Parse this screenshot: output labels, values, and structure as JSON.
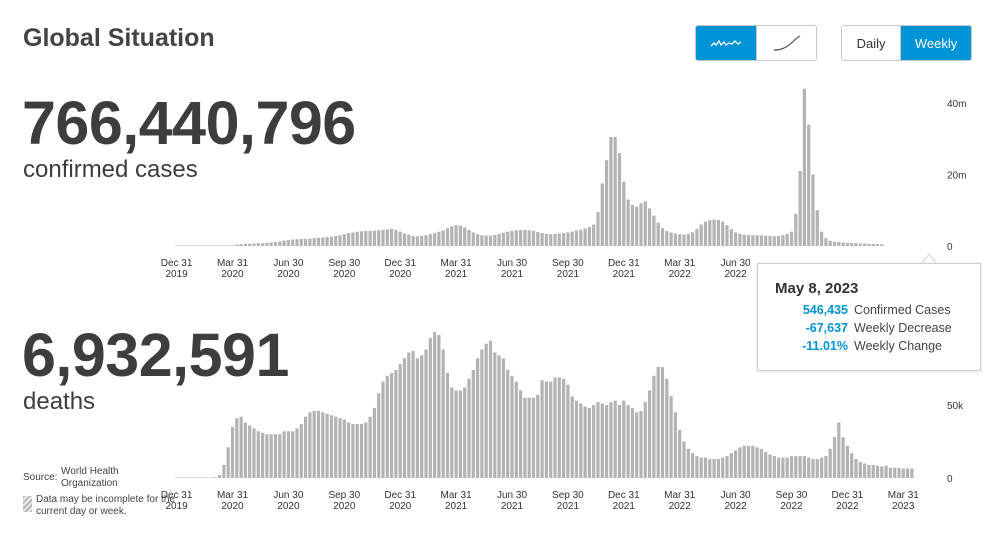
{
  "header": {
    "title": "Global Situation"
  },
  "view_toggle": {
    "icons": [
      "sparkline-icon",
      "cumulative-curve-icon"
    ]
  },
  "frequency": {
    "daily_label": "Daily",
    "weekly_label": "Weekly",
    "selected": "Weekly"
  },
  "colors": {
    "accent": "#0093d5",
    "bars": "#b3b3b3",
    "text": "#3d3d3d"
  },
  "cases": {
    "value": "766,440,796",
    "label": "confirmed cases"
  },
  "deaths": {
    "value": "6,932,591",
    "label": "deaths"
  },
  "tooltip": {
    "date": "May 8, 2023",
    "rows": [
      {
        "value": "546,435",
        "label": "Confirmed Cases"
      },
      {
        "value": "-67,637",
        "label": "Weekly Decrease"
      },
      {
        "value": "-11.01%",
        "label": "Weekly Change"
      }
    ]
  },
  "source": {
    "key": "Source:",
    "value": "World Health Organization"
  },
  "note": "Data may be incomplete for the current day or week.",
  "chart_data": [
    {
      "type": "bar",
      "title": "",
      "series": [
        {
          "name": "Confirmed Cases",
          "values": [
            0,
            0,
            0,
            0,
            0,
            0,
            0,
            0,
            0,
            0,
            0,
            0,
            0.1,
            0.2,
            0.4,
            0.5,
            0.6,
            0.6,
            0.7,
            0.8,
            0.8,
            0.9,
            1.0,
            1.1,
            1.3,
            1.5,
            1.7,
            1.8,
            1.9,
            2.0,
            2.0,
            2.1,
            2.2,
            2.3,
            2.4,
            2.5,
            2.6,
            2.8,
            3.0,
            3.3,
            3.6,
            3.8,
            4.0,
            4.1,
            4.2,
            4.2,
            4.3,
            4.4,
            4.5,
            4.6,
            4.8,
            4.5,
            4.0,
            3.5,
            3.2,
            2.8,
            2.7,
            2.8,
            3.0,
            3.3,
            3.6,
            4.0,
            4.4,
            5.0,
            5.5,
            5.8,
            5.7,
            5.2,
            4.5,
            3.8,
            3.3,
            3.0,
            2.9,
            2.9,
            3.1,
            3.4,
            3.7,
            4.0,
            4.2,
            4.4,
            4.5,
            4.5,
            4.4,
            4.2,
            3.9,
            3.6,
            3.4,
            3.3,
            3.4,
            3.5,
            3.6,
            3.8,
            4.0,
            4.3,
            4.6,
            4.9,
            5.3,
            6.0,
            9.5,
            17.5,
            24.0,
            30.5,
            30.5,
            26.0,
            18.0,
            13.0,
            11.5,
            11.0,
            12.0,
            12.5,
            10.5,
            8.5,
            6.5,
            5.0,
            4.2,
            3.8,
            3.5,
            3.3,
            3.2,
            3.4,
            3.8,
            4.8,
            6.0,
            6.8,
            7.2,
            7.4,
            7.3,
            6.8,
            5.8,
            4.7,
            3.8,
            3.4,
            3.2,
            3.1,
            3.0,
            3.0,
            3.0,
            2.9,
            2.8,
            2.7,
            2.8,
            3.1,
            3.4,
            4.0,
            9.0,
            21.0,
            44.0,
            34.0,
            20.0,
            10.0,
            4.0,
            2.2,
            1.5,
            1.2,
            1.1,
            1.0,
            0.9,
            0.8,
            0.8,
            0.7,
            0.7,
            0.6,
            0.6,
            0.55,
            0.5
          ]
        }
      ],
      "ylim": [
        0,
        43
      ],
      "y_ticks": [
        {
          "value": 0,
          "label": "0"
        },
        {
          "value": 20,
          "label": "20m"
        },
        {
          "value": 40,
          "label": "40m"
        }
      ],
      "x_ticks": [
        {
          "week": 0,
          "label": [
            "Dec 31",
            "2019"
          ]
        },
        {
          "week": 13,
          "label": [
            "Mar 31",
            "2020"
          ]
        },
        {
          "week": 26,
          "label": [
            "Jun 30",
            "2020"
          ]
        },
        {
          "week": 39,
          "label": [
            "Sep 30",
            "2020"
          ]
        },
        {
          "week": 52,
          "label": [
            "Dec 31",
            "2020"
          ]
        },
        {
          "week": 65,
          "label": [
            "Mar 31",
            "2021"
          ]
        },
        {
          "week": 78,
          "label": [
            "Jun 30",
            "2021"
          ]
        },
        {
          "week": 91,
          "label": [
            "Sep 30",
            "2021"
          ]
        },
        {
          "week": 104,
          "label": [
            "Dec 31",
            "2021"
          ]
        },
        {
          "week": 117,
          "label": [
            "Mar 31",
            "2022"
          ]
        },
        {
          "week": 130,
          "label": [
            "Jun 30",
            "2022"
          ]
        }
      ],
      "highlight_week": 175
    },
    {
      "type": "bar",
      "title": "",
      "series": [
        {
          "name": "Deaths",
          "values": [
            0,
            0,
            0,
            0,
            0,
            0,
            0,
            0,
            0.1,
            0.6,
            2.0,
            9.0,
            21.0,
            35.0,
            41.0,
            42.0,
            38.0,
            36.0,
            34.0,
            32.0,
            31.0,
            30.0,
            30.0,
            30.0,
            30.0,
            32.0,
            32.0,
            32.0,
            34.0,
            37.0,
            42.0,
            45.0,
            46.0,
            46.0,
            45.0,
            44.0,
            43.0,
            42.0,
            41.0,
            40.0,
            38.0,
            37.0,
            37.0,
            37.0,
            38.0,
            42.0,
            48.0,
            58.0,
            66.0,
            70.0,
            72.0,
            74.0,
            78.0,
            82.0,
            86.0,
            87.0,
            82.0,
            84.0,
            88.0,
            96.0,
            100.0,
            98.0,
            88.0,
            72.0,
            62.0,
            60.0,
            60.0,
            62.0,
            68.0,
            74.0,
            82.0,
            88.0,
            92.0,
            94.0,
            86.0,
            84.0,
            82.0,
            74.0,
            70.0,
            66.0,
            60.0,
            55.0,
            55.0,
            55.0,
            57.0,
            67.0,
            66.0,
            66.0,
            69.0,
            69.0,
            68.0,
            64.0,
            56.0,
            53.0,
            51.0,
            49.0,
            48.0,
            50.0,
            52.0,
            51.0,
            50.0,
            52.0,
            53.0,
            50.0,
            53.0,
            50.0,
            48.0,
            45.0,
            46.0,
            52.0,
            60.0,
            70.0,
            76.0,
            76.0,
            68.0,
            56.0,
            45.0,
            33.0,
            25.0,
            20.0,
            17.0,
            15.0,
            14.0,
            14.0,
            13.0,
            13.0,
            13.0,
            14.0,
            15.0,
            17.0,
            19.0,
            21.0,
            22.0,
            22.0,
            22.0,
            21.0,
            20.0,
            18.0,
            16.0,
            15.0,
            14.0,
            14.0,
            14.0,
            15.0,
            15.0,
            15.0,
            15.0,
            14.0,
            13.0,
            13.0,
            14.0,
            15.0,
            20.0,
            28.0,
            38.0,
            28.0,
            22.0,
            17.0,
            13.0,
            11.0,
            10.0,
            9.0,
            9.0,
            8.5,
            8.0,
            8.5,
            7.0,
            7.0,
            7.0,
            6.5,
            6.5,
            6.5
          ]
        }
      ],
      "ylim": [
        0,
        100
      ],
      "y_ticks": [
        {
          "value": 0,
          "label": "0"
        },
        {
          "value": 50,
          "label": "50k"
        }
      ],
      "x_ticks": [
        {
          "week": 0,
          "label": [
            "Dec 31",
            "2019"
          ]
        },
        {
          "week": 13,
          "label": [
            "Mar 31",
            "2020"
          ]
        },
        {
          "week": 26,
          "label": [
            "Jun 30",
            "2020"
          ]
        },
        {
          "week": 39,
          "label": [
            "Sep 30",
            "2020"
          ]
        },
        {
          "week": 52,
          "label": [
            "Dec 31",
            "2020"
          ]
        },
        {
          "week": 65,
          "label": [
            "Mar 31",
            "2021"
          ]
        },
        {
          "week": 78,
          "label": [
            "Jun 30",
            "2021"
          ]
        },
        {
          "week": 91,
          "label": [
            "Sep 30",
            "2021"
          ]
        },
        {
          "week": 104,
          "label": [
            "Dec 31",
            "2021"
          ]
        },
        {
          "week": 117,
          "label": [
            "Mar 31",
            "2022"
          ]
        },
        {
          "week": 130,
          "label": [
            "Jun 30",
            "2022"
          ]
        },
        {
          "week": 143,
          "label": [
            "Sep 30",
            "2022"
          ]
        },
        {
          "week": 156,
          "label": [
            "Dec 31",
            "2022"
          ]
        },
        {
          "week": 169,
          "label": [
            "Mar 31",
            "2023"
          ]
        }
      ]
    }
  ]
}
